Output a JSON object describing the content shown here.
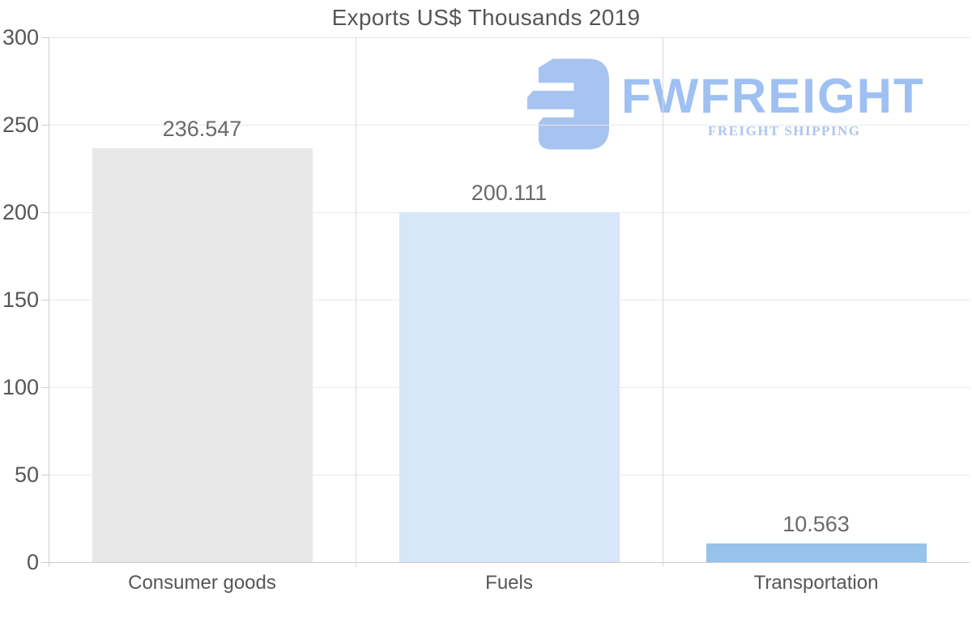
{
  "title": "Exports US$ Thousands 2019",
  "watermark": {
    "brand": "FWFREIGHT",
    "tagline": "FREIGHT SHIPPING",
    "icon_color": "#a7c3f0",
    "brand_color": "#9fc0f2",
    "tagline_color": "#adc6f0"
  },
  "chart_data": {
    "type": "bar",
    "title": "Exports US$ Thousands 2019",
    "categories": [
      "Consumer goods",
      "Fuels",
      "Transportation"
    ],
    "values": [
      236.547,
      200.111,
      10.563
    ],
    "value_labels": [
      "236.547",
      "200.111",
      "10.563"
    ],
    "bar_colors": [
      "#e8e8e8",
      "#d7e6f9",
      "#97c2e9"
    ],
    "ylim": [
      0,
      300
    ],
    "yticks": [
      0,
      50,
      100,
      150,
      200,
      250,
      300
    ],
    "grid": "horizontal gridlines with vertical category separators",
    "legend": "none",
    "xlabel": "",
    "ylabel": ""
  }
}
